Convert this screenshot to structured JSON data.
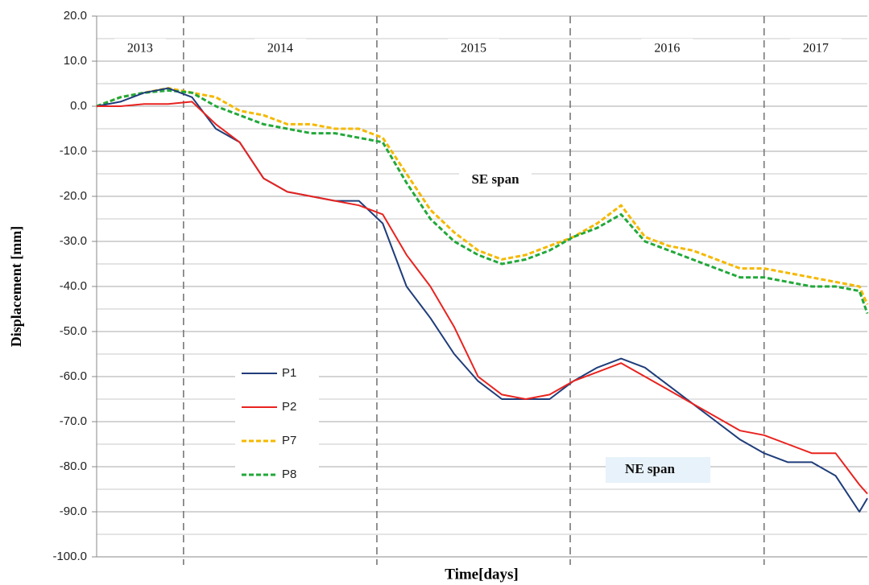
{
  "chart_data": {
    "type": "line",
    "y_label": "Displacement  [mm]",
    "x_label": "Time[days]",
    "xlim": [
      0,
      1455
    ],
    "ylim": [
      -100,
      20
    ],
    "yticks": [
      {
        "value": 20,
        "label": "20.0"
      },
      {
        "value": 10,
        "label": "10.0"
      },
      {
        "value": 0,
        "label": "0.0"
      },
      {
        "value": -10,
        "label": "-10.0"
      },
      {
        "value": -20,
        "label": "-20.0"
      },
      {
        "value": -30,
        "label": "-30.0"
      },
      {
        "value": -40,
        "label": "-40.0"
      },
      {
        "value": -50,
        "label": "-50.0"
      },
      {
        "value": -60,
        "label": "-60.0"
      },
      {
        "value": -70,
        "label": "-70.0"
      },
      {
        "value": -80,
        "label": "-80.0"
      },
      {
        "value": -90,
        "label": "-90.0"
      },
      {
        "value": -100,
        "label": "-100.0"
      }
    ],
    "grid": true,
    "minor_grid": true,
    "year_labels": [
      "2013",
      "2014",
      "2015",
      "2016",
      "2017"
    ],
    "year_boundaries": [
      164,
      529,
      894,
      1260
    ],
    "annotations": [
      "SE span",
      "NE span"
    ],
    "legend": "lower left",
    "x": [
      0,
      45,
      90,
      135,
      180,
      225,
      270,
      315,
      360,
      405,
      450,
      495,
      540,
      585,
      630,
      675,
      720,
      765,
      810,
      855,
      900,
      945,
      990,
      1035,
      1080,
      1125,
      1170,
      1215,
      1260,
      1305,
      1350,
      1395,
      1440,
      1455
    ],
    "series": [
      {
        "name": "P1",
        "color": "#1f3d7a",
        "dashed": false,
        "values": [
          0,
          1,
          3,
          4,
          2,
          -5,
          -8,
          -16,
          -19,
          -20,
          -21,
          -21,
          -26,
          -40,
          -47,
          -55,
          -61,
          -65,
          -65,
          -65,
          -61,
          -58,
          -56,
          -58,
          -62,
          -66,
          -70,
          -74,
          -77,
          -79,
          -79,
          -82,
          -90,
          -87
        ]
      },
      {
        "name": "P2",
        "color": "#e8231f",
        "dashed": false,
        "values": [
          0,
          0,
          0.5,
          0.5,
          1,
          -4,
          -8,
          -16,
          -19,
          -20,
          -21,
          -22,
          -24,
          -33,
          -40,
          -49,
          -60,
          -64,
          -65,
          -64,
          -61,
          -59,
          -57,
          -60,
          -63,
          -66,
          -69,
          -72,
          -73,
          -75,
          -77,
          -77,
          -84,
          -86
        ]
      },
      {
        "name": "P7",
        "color": "#f5b800",
        "dashed": true,
        "values": [
          0,
          2,
          3,
          4,
          3,
          2,
          -1,
          -2,
          -4,
          -4,
          -5,
          -5,
          -7,
          -15,
          -23,
          -28,
          -32,
          -34,
          -33,
          -31,
          -29,
          -26,
          -22,
          -29,
          -31,
          -32,
          -34,
          -36,
          -36,
          -37,
          -38,
          -39,
          -40,
          -44
        ]
      },
      {
        "name": "P8",
        "color": "#22a83a",
        "dashed": true,
        "values": [
          0,
          2,
          3,
          3.5,
          3,
          0,
          -2,
          -4,
          -5,
          -6,
          -6,
          -7,
          -8,
          -17,
          -25,
          -30,
          -33,
          -35,
          -34,
          -32,
          -29,
          -27,
          -24,
          -30,
          -32,
          -34,
          -36,
          -38,
          -38,
          -39,
          -40,
          -40,
          -41,
          -46
        ]
      }
    ]
  }
}
